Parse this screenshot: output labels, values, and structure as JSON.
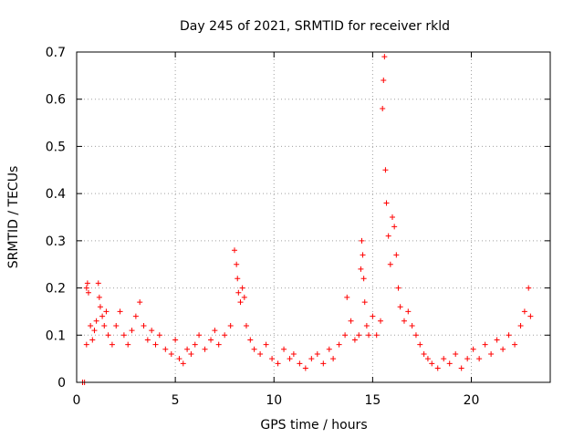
{
  "chart_data": {
    "type": "scatter",
    "title": "Day 245 of 2021, SRMTID for receiver rkld",
    "xlabel": "GPS time / hours",
    "ylabel": "SRMTID / TECUs",
    "xlim": [
      0,
      24
    ],
    "ylim": [
      0,
      0.7
    ],
    "xticks": [
      0,
      5,
      10,
      15,
      20
    ],
    "xtick_labels": [
      "0",
      "5",
      "10",
      "15",
      "20"
    ],
    "yticks": [
      0,
      0.1,
      0.2,
      0.3,
      0.4,
      0.5,
      0.6,
      0.7
    ],
    "ytick_labels": [
      "0",
      "0.1",
      "0.2",
      "0.3",
      "0.4",
      "0.5",
      "0.6",
      "0.7"
    ],
    "grid": true,
    "marker": "+",
    "marker_color": "#ff0000",
    "series": [
      {
        "name": "SRMTID",
        "points": [
          [
            0.3,
            0.0
          ],
          [
            0.4,
            0.0
          ],
          [
            0.5,
            0.08
          ],
          [
            0.5,
            0.2
          ],
          [
            0.55,
            0.21
          ],
          [
            0.6,
            0.19
          ],
          [
            0.7,
            0.12
          ],
          [
            0.8,
            0.09
          ],
          [
            0.9,
            0.11
          ],
          [
            1.0,
            0.13
          ],
          [
            1.1,
            0.21
          ],
          [
            1.15,
            0.18
          ],
          [
            1.2,
            0.16
          ],
          [
            1.3,
            0.14
          ],
          [
            1.4,
            0.12
          ],
          [
            1.5,
            0.15
          ],
          [
            1.6,
            0.1
          ],
          [
            1.8,
            0.08
          ],
          [
            2.0,
            0.12
          ],
          [
            2.2,
            0.15
          ],
          [
            2.4,
            0.1
          ],
          [
            2.6,
            0.08
          ],
          [
            2.8,
            0.11
          ],
          [
            3.0,
            0.14
          ],
          [
            3.2,
            0.17
          ],
          [
            3.4,
            0.12
          ],
          [
            3.6,
            0.09
          ],
          [
            3.8,
            0.11
          ],
          [
            4.0,
            0.08
          ],
          [
            4.2,
            0.1
          ],
          [
            4.5,
            0.07
          ],
          [
            4.8,
            0.06
          ],
          [
            5.0,
            0.09
          ],
          [
            5.2,
            0.05
          ],
          [
            5.4,
            0.04
          ],
          [
            5.6,
            0.07
          ],
          [
            5.8,
            0.06
          ],
          [
            6.0,
            0.08
          ],
          [
            6.2,
            0.1
          ],
          [
            6.5,
            0.07
          ],
          [
            6.8,
            0.09
          ],
          [
            7.0,
            0.11
          ],
          [
            7.2,
            0.08
          ],
          [
            7.5,
            0.1
          ],
          [
            7.8,
            0.12
          ],
          [
            8.0,
            0.28
          ],
          [
            8.1,
            0.25
          ],
          [
            8.15,
            0.22
          ],
          [
            8.2,
            0.19
          ],
          [
            8.3,
            0.17
          ],
          [
            8.4,
            0.2
          ],
          [
            8.5,
            0.18
          ],
          [
            8.6,
            0.12
          ],
          [
            8.8,
            0.09
          ],
          [
            9.0,
            0.07
          ],
          [
            9.3,
            0.06
          ],
          [
            9.6,
            0.08
          ],
          [
            9.9,
            0.05
          ],
          [
            10.2,
            0.04
          ],
          [
            10.5,
            0.07
          ],
          [
            10.8,
            0.05
          ],
          [
            11.0,
            0.06
          ],
          [
            11.3,
            0.04
          ],
          [
            11.6,
            0.03
          ],
          [
            11.9,
            0.05
          ],
          [
            12.2,
            0.06
          ],
          [
            12.5,
            0.04
          ],
          [
            12.8,
            0.07
          ],
          [
            13.0,
            0.05
          ],
          [
            13.3,
            0.08
          ],
          [
            13.6,
            0.1
          ],
          [
            13.7,
            0.18
          ],
          [
            13.9,
            0.13
          ],
          [
            14.1,
            0.09
          ],
          [
            14.3,
            0.1
          ],
          [
            14.4,
            0.24
          ],
          [
            14.45,
            0.3
          ],
          [
            14.5,
            0.27
          ],
          [
            14.55,
            0.22
          ],
          [
            14.6,
            0.17
          ],
          [
            14.7,
            0.12
          ],
          [
            14.8,
            0.1
          ],
          [
            15.0,
            0.14
          ],
          [
            15.2,
            0.1
          ],
          [
            15.4,
            0.13
          ],
          [
            15.5,
            0.58
          ],
          [
            15.55,
            0.64
          ],
          [
            15.6,
            0.69
          ],
          [
            15.65,
            0.45
          ],
          [
            15.7,
            0.38
          ],
          [
            15.8,
            0.31
          ],
          [
            15.9,
            0.25
          ],
          [
            16.0,
            0.35
          ],
          [
            16.1,
            0.33
          ],
          [
            16.2,
            0.27
          ],
          [
            16.3,
            0.2
          ],
          [
            16.4,
            0.16
          ],
          [
            16.6,
            0.13
          ],
          [
            16.8,
            0.15
          ],
          [
            17.0,
            0.12
          ],
          [
            17.2,
            0.1
          ],
          [
            17.4,
            0.08
          ],
          [
            17.6,
            0.06
          ],
          [
            17.8,
            0.05
          ],
          [
            18.0,
            0.04
          ],
          [
            18.3,
            0.03
          ],
          [
            18.6,
            0.05
          ],
          [
            18.9,
            0.04
          ],
          [
            19.2,
            0.06
          ],
          [
            19.5,
            0.03
          ],
          [
            19.8,
            0.05
          ],
          [
            20.1,
            0.07
          ],
          [
            20.4,
            0.05
          ],
          [
            20.7,
            0.08
          ],
          [
            21.0,
            0.06
          ],
          [
            21.3,
            0.09
          ],
          [
            21.6,
            0.07
          ],
          [
            21.9,
            0.1
          ],
          [
            22.2,
            0.08
          ],
          [
            22.5,
            0.12
          ],
          [
            22.7,
            0.15
          ],
          [
            22.9,
            0.2
          ],
          [
            23.0,
            0.14
          ]
        ]
      }
    ]
  }
}
